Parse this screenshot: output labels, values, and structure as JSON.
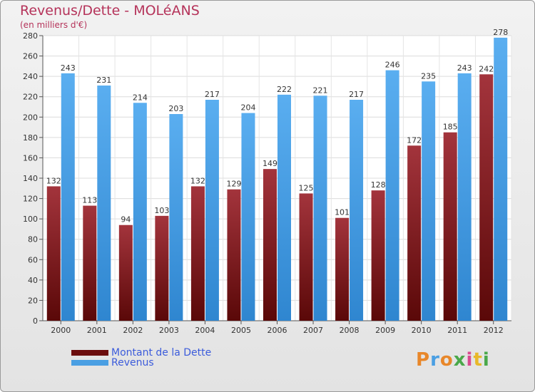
{
  "header": {
    "title": "Revenus/Dette - MOLéANS",
    "subtitle": "(en milliers d'€)"
  },
  "logo": {
    "text": "Proxiti"
  },
  "chart_data": {
    "type": "bar",
    "title": "Revenus/Dette - MOLéANS",
    "subtitle": "(en milliers d'€)",
    "categories": [
      "2000",
      "2001",
      "2002",
      "2003",
      "2004",
      "2005",
      "2006",
      "2007",
      "2008",
      "2009",
      "2010",
      "2011",
      "2012"
    ],
    "series": [
      {
        "name": "Montant de la Dette",
        "values": [
          132,
          113,
          94,
          103,
          132,
          129,
          149,
          125,
          101,
          128,
          172,
          185,
          242
        ],
        "color": "#7a1818"
      },
      {
        "name": "Revenus",
        "values": [
          243,
          231,
          214,
          203,
          217,
          204,
          222,
          221,
          217,
          246,
          235,
          243,
          278
        ],
        "color": "#4a9fe3"
      }
    ],
    "ylim": [
      0,
      280
    ],
    "ytick_step": 20,
    "grid": true,
    "legend": "bottom-left"
  }
}
